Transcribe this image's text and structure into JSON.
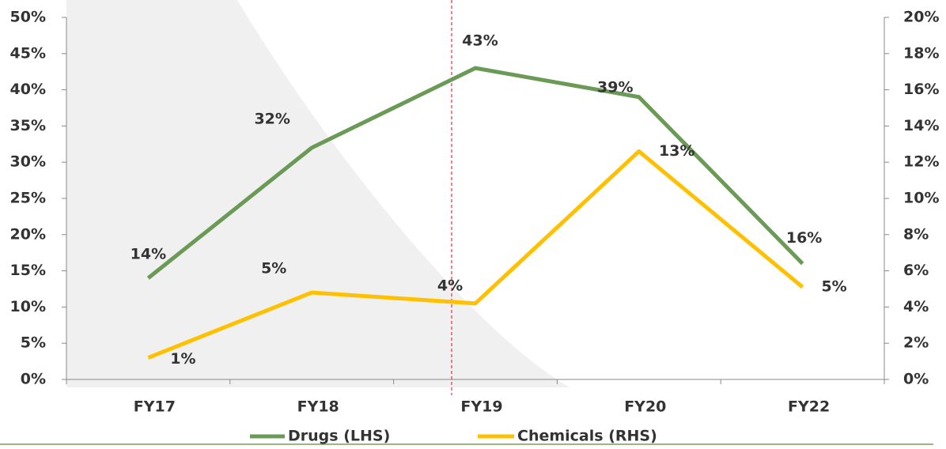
{
  "chart_data": {
    "type": "line",
    "categories": [
      "FY17",
      "FY18",
      "FY19",
      "FY20",
      "FY22"
    ],
    "series": [
      {
        "name": "Drugs (LHS)",
        "color": "#6a9a56",
        "values": [
          14,
          32,
          43,
          39,
          16
        ],
        "value_labels": [
          "14%",
          "32%",
          "43%",
          "39%",
          "16%"
        ]
      },
      {
        "name": "Chemicals (RHS)",
        "color": "#ffc000",
        "axis": "y2",
        "values": [
          1.2,
          4.8,
          4.2,
          12.6,
          5.1
        ],
        "value_labels": [
          "1%",
          "5%",
          "4%",
          "13%",
          "5%"
        ]
      }
    ],
    "ylim": [
      0,
      50
    ],
    "yticks": [
      {
        "value": 0,
        "label": "0%"
      },
      {
        "value": 5,
        "label": "5%"
      },
      {
        "value": 10,
        "label": "10%"
      },
      {
        "value": 15,
        "label": "15%"
      },
      {
        "value": 20,
        "label": "20%"
      },
      {
        "value": 25,
        "label": "25%"
      },
      {
        "value": 30,
        "label": "30%"
      },
      {
        "value": 35,
        "label": "35%"
      },
      {
        "value": 40,
        "label": "40%"
      },
      {
        "value": 45,
        "label": "45%"
      },
      {
        "value": 50,
        "label": "50%"
      }
    ],
    "y2lim": [
      0,
      20
    ],
    "y2ticks": [
      {
        "value": 0,
        "label": "0%"
      },
      {
        "value": 2,
        "label": "2%"
      },
      {
        "value": 4,
        "label": "4%"
      },
      {
        "value": 6,
        "label": "6%"
      },
      {
        "value": 8,
        "label": "8%"
      },
      {
        "value": 10,
        "label": "10%"
      },
      {
        "value": 12,
        "label": "12%"
      },
      {
        "value": 14,
        "label": "14%"
      },
      {
        "value": 16,
        "label": "16%"
      },
      {
        "value": 18,
        "label": "18%"
      },
      {
        "value": 20,
        "label": "20%"
      }
    ],
    "legend": "bottom"
  }
}
